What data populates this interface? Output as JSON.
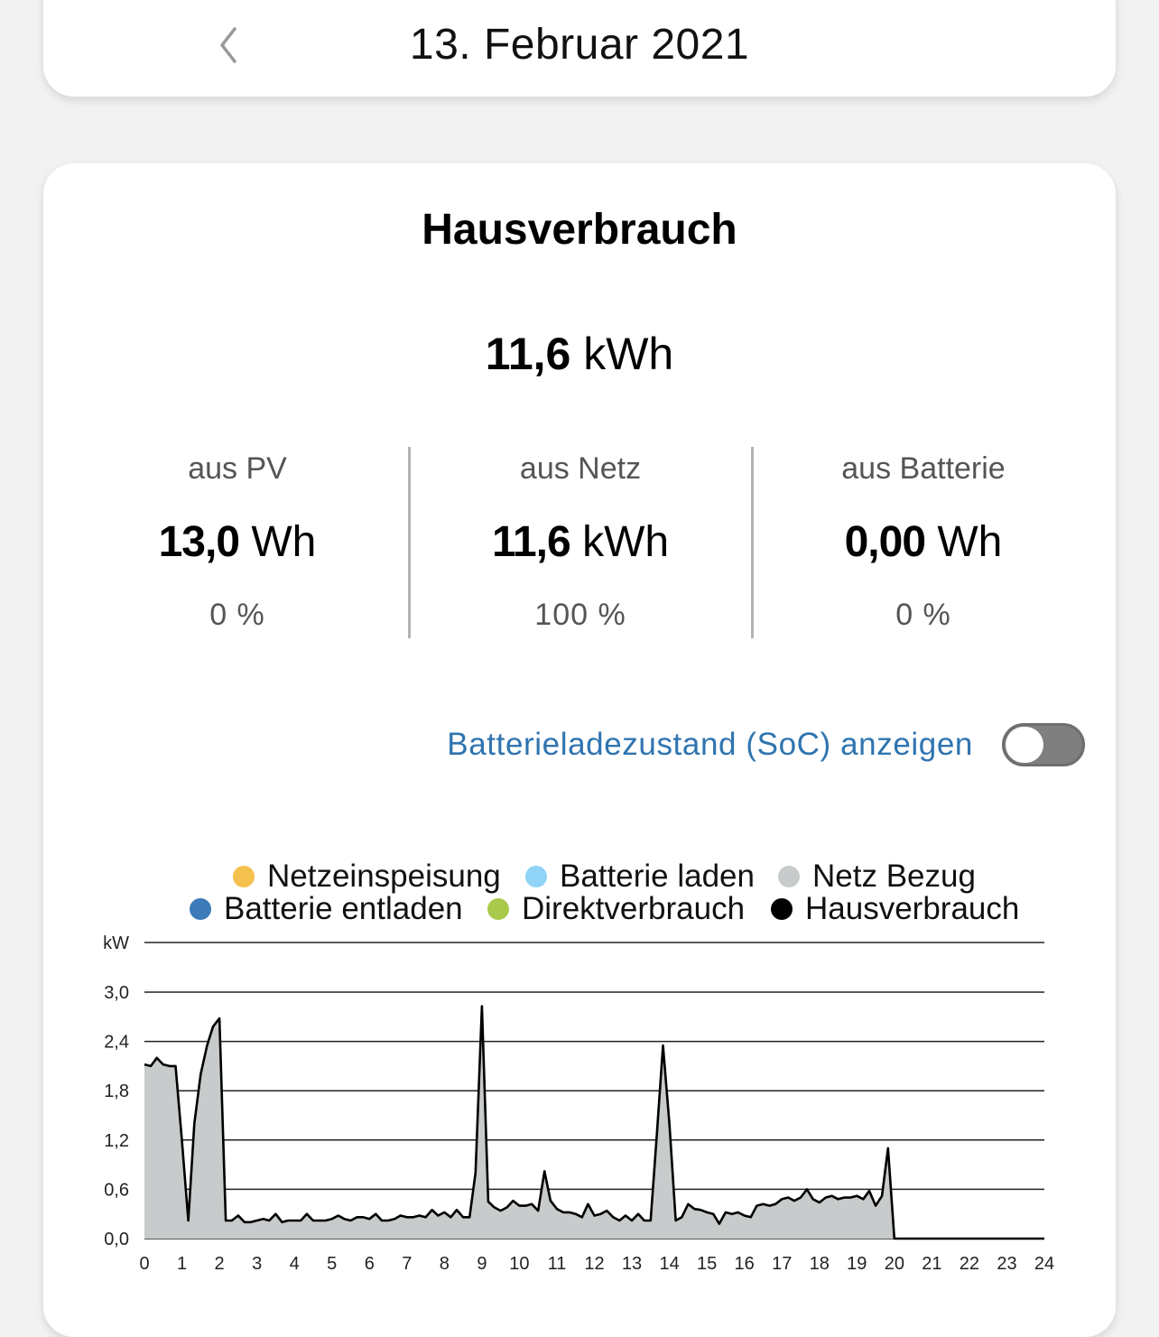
{
  "date_header": {
    "title": "13. Februar 2021",
    "back_icon": "chevron-left-icon"
  },
  "consumption": {
    "title": "Hausverbrauch",
    "total_value": "11,6",
    "total_unit": "kWh",
    "sources": [
      {
        "label": "aus PV",
        "value": "13,0",
        "unit": "Wh",
        "percent": "0 %"
      },
      {
        "label": "aus Netz",
        "value": "11,6",
        "unit": "kWh",
        "percent": "100 %"
      },
      {
        "label": "aus Batterie",
        "value": "0,00",
        "unit": "Wh",
        "percent": "0 %"
      }
    ],
    "soc_toggle": {
      "label": "Batterieladezustand (SoC) anzeigen",
      "state": "off"
    }
  },
  "colors": {
    "accent_link": "#2f74b0",
    "netzeinspeisung": "#f4c04e",
    "batterie_laden": "#8fd3f7",
    "netz_bezug": "#c8cbcb",
    "batterie_entladen": "#3c7ab8",
    "direktverbrauch": "#a8c94a",
    "hausverbrauch": "#000000"
  },
  "chart_data": {
    "type": "area",
    "y_unit_label": "kW",
    "ylim": [
      0,
      3.0
    ],
    "yticks": [
      "0,0",
      "0,6",
      "1,2",
      "1,8",
      "2,4",
      "3,0"
    ],
    "ytick_values": [
      0,
      0.6,
      1.2,
      1.8,
      2.4,
      3.0
    ],
    "xlim": [
      0,
      24
    ],
    "xticks": [
      "0",
      "1",
      "2",
      "3",
      "4",
      "5",
      "6",
      "7",
      "8",
      "9",
      "10",
      "11",
      "12",
      "13",
      "14",
      "15",
      "16",
      "17",
      "18",
      "19",
      "20",
      "21",
      "22",
      "23",
      "24"
    ],
    "grid": "horizontal",
    "legend": [
      {
        "name": "Netzeinspeisung",
        "color_key": "netzeinspeisung"
      },
      {
        "name": "Batterie laden",
        "color_key": "batterie_laden"
      },
      {
        "name": "Netz Bezug",
        "color_key": "netz_bezug"
      },
      {
        "name": "Batterie entladen",
        "color_key": "batterie_entladen"
      },
      {
        "name": "Direktverbrauch",
        "color_key": "direktverbrauch"
      },
      {
        "name": "Hausverbrauch",
        "color_key": "hausverbrauch"
      }
    ],
    "series": [
      {
        "name": "Hausverbrauch",
        "x": [
          0,
          0.17,
          0.33,
          0.5,
          0.67,
          0.83,
          1.0,
          1.17,
          1.33,
          1.5,
          1.67,
          1.83,
          2.0,
          2.17,
          2.33,
          2.5,
          2.67,
          2.83,
          3.0,
          3.17,
          3.33,
          3.5,
          3.67,
          3.83,
          4.0,
          4.17,
          4.33,
          4.5,
          4.67,
          4.83,
          5.0,
          5.17,
          5.33,
          5.5,
          5.67,
          5.83,
          6.0,
          6.17,
          6.33,
          6.5,
          6.67,
          6.83,
          7.0,
          7.17,
          7.33,
          7.5,
          7.67,
          7.83,
          8.0,
          8.17,
          8.33,
          8.5,
          8.67,
          8.83,
          9.0,
          9.17,
          9.33,
          9.5,
          9.67,
          9.83,
          10.0,
          10.17,
          10.33,
          10.5,
          10.67,
          10.83,
          11.0,
          11.17,
          11.33,
          11.5,
          11.67,
          11.83,
          12.0,
          12.17,
          12.33,
          12.5,
          12.67,
          12.83,
          13.0,
          13.17,
          13.33,
          13.5,
          13.67,
          13.83,
          14.0,
          14.17,
          14.33,
          14.5,
          14.67,
          14.83,
          15.0,
          15.17,
          15.33,
          15.5,
          15.67,
          15.83,
          16.0,
          16.17,
          16.33,
          16.5,
          16.67,
          16.83,
          17.0,
          17.17,
          17.33,
          17.5,
          17.67,
          17.83,
          18.0,
          18.17,
          18.33,
          18.5,
          18.67,
          18.83,
          19.0,
          19.17,
          19.33,
          19.5,
          19.67,
          19.83,
          20.0,
          21.0,
          22.0,
          23.0,
          24.0
        ],
        "y": [
          2.12,
          2.1,
          2.2,
          2.12,
          2.1,
          2.1,
          1.2,
          0.22,
          1.4,
          2.0,
          2.35,
          2.58,
          2.68,
          0.22,
          0.22,
          0.28,
          0.2,
          0.2,
          0.22,
          0.24,
          0.22,
          0.3,
          0.2,
          0.22,
          0.22,
          0.22,
          0.3,
          0.22,
          0.22,
          0.22,
          0.24,
          0.28,
          0.24,
          0.22,
          0.26,
          0.26,
          0.24,
          0.3,
          0.22,
          0.22,
          0.24,
          0.28,
          0.26,
          0.26,
          0.28,
          0.26,
          0.35,
          0.28,
          0.32,
          0.26,
          0.35,
          0.26,
          0.26,
          0.8,
          2.83,
          0.45,
          0.38,
          0.34,
          0.38,
          0.46,
          0.4,
          0.4,
          0.42,
          0.34,
          0.82,
          0.46,
          0.36,
          0.32,
          0.32,
          0.3,
          0.26,
          0.42,
          0.28,
          0.3,
          0.34,
          0.26,
          0.22,
          0.28,
          0.22,
          0.3,
          0.22,
          0.22,
          1.3,
          2.35,
          1.4,
          0.22,
          0.26,
          0.42,
          0.36,
          0.35,
          0.32,
          0.3,
          0.18,
          0.32,
          0.3,
          0.32,
          0.28,
          0.26,
          0.4,
          0.42,
          0.4,
          0.42,
          0.48,
          0.5,
          0.46,
          0.5,
          0.6,
          0.48,
          0.44,
          0.5,
          0.52,
          0.48,
          0.5,
          0.5,
          0.52,
          0.48,
          0.58,
          0.4,
          0.52,
          1.1,
          0.0,
          0.0,
          0.0,
          0.0,
          0.0
        ]
      }
    ]
  }
}
